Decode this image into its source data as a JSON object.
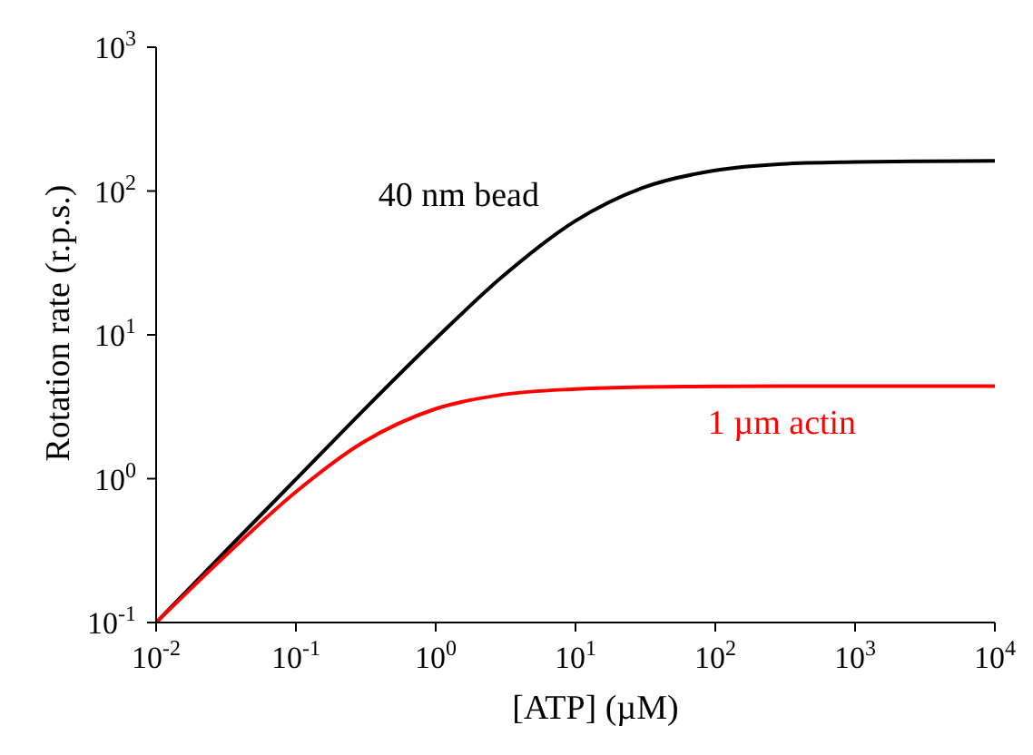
{
  "chart_data": {
    "type": "line",
    "xlabel": "[ATP] (µM)",
    "ylabel": "Rotation rate (r.p.s.)",
    "log": "xy",
    "marker": "none",
    "line_style": "solid",
    "x": [
      0.01,
      0.03,
      0.1,
      0.3,
      1,
      3,
      10,
      30,
      100,
      300,
      1000,
      3000,
      10000
    ],
    "xlim": [
      0.01,
      10000
    ],
    "ylim": [
      0.1,
      1000
    ],
    "xticks": [
      {
        "value": 0.01,
        "label": "10$^{-2}$"
      },
      {
        "value": 0.1,
        "label": "10$^{-1}$"
      },
      {
        "value": 1,
        "label": "10$^{0}$"
      },
      {
        "value": 10,
        "label": "10$^{1}$"
      },
      {
        "value": 100,
        "label": "10$^{2}$"
      },
      {
        "value": 1000,
        "label": "10$^{3}$"
      },
      {
        "value": 10000,
        "label": "10$^{4}$"
      }
    ],
    "yticks": [
      {
        "value": 0.1,
        "label": "10$^{-1}$"
      },
      {
        "value": 1,
        "label": "10$^{0}$"
      },
      {
        "value": 10,
        "label": "10$^{1}$"
      },
      {
        "value": 100,
        "label": "10$^{2}$"
      },
      {
        "value": 1000,
        "label": "10$^{3}$"
      }
    ],
    "series": [
      {
        "name": "40 nm bead",
        "color": "#000000",
        "values": [
          0.1,
          0.3,
          0.99,
          2.95,
          9.4,
          25.4,
          62,
          105,
          139,
          154,
          159,
          161,
          162
        ]
      },
      {
        "name": "1 µm actin",
        "color": "#ff0000",
        "values": [
          0.1,
          0.28,
          0.81,
          1.78,
          3.06,
          3.84,
          4.2,
          4.34,
          4.38,
          4.4,
          4.4,
          4.4,
          4.4
        ]
      }
    ]
  }
}
